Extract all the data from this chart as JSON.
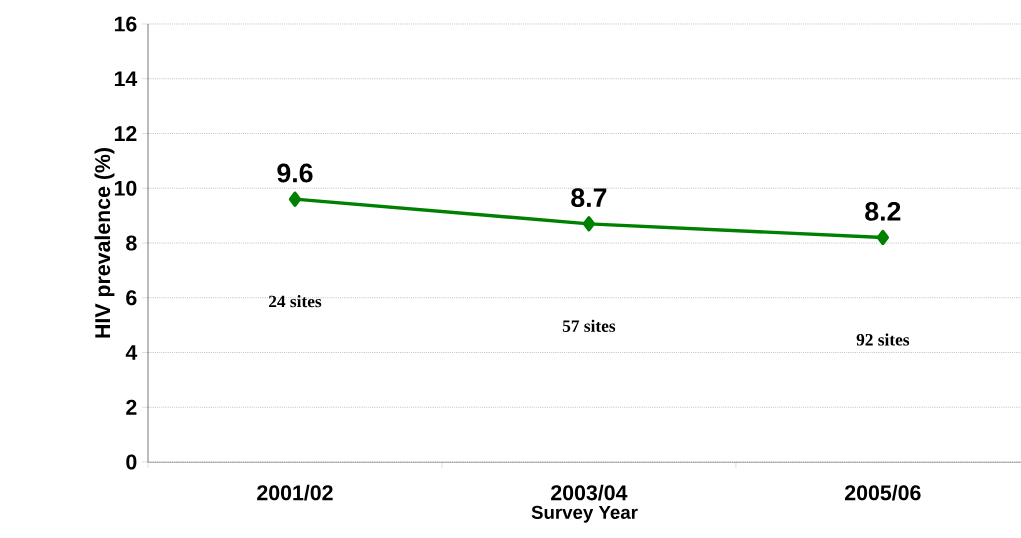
{
  "chart_data": {
    "type": "line",
    "xlabel": "Survey Year",
    "ylabel": "HIV prevalence (%)",
    "categories": [
      "2001/02",
      "2003/04",
      "2005/06"
    ],
    "series": [
      {
        "color": "#008000",
        "values": [
          9.6,
          8.7,
          8.2
        ]
      }
    ],
    "ylim": [
      0,
      16
    ],
    "yticks": [
      0,
      2,
      4,
      6,
      8,
      10,
      12,
      14,
      16
    ],
    "grid": "y",
    "marker": "diamond",
    "line_style": "solid",
    "data_labels": true,
    "annotations": [
      "24 sites",
      "57 sites",
      "92 sites"
    ]
  }
}
